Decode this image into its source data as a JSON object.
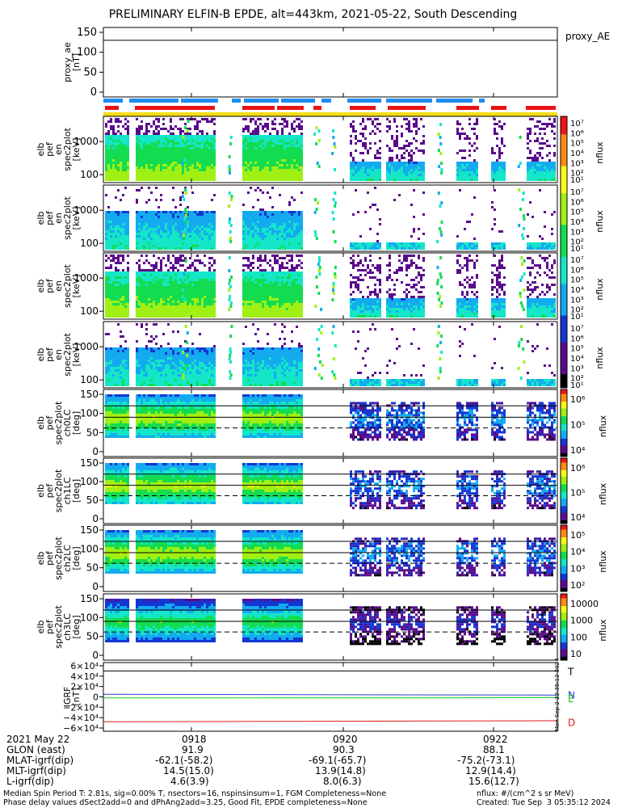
{
  "title": "PRELIMINARY ELFIN-B EPDE, alt=443km, 2021-05-22, South Descending",
  "proxy_label": "proxy_AE",
  "panels": [
    {
      "id": "proxy_ae",
      "label": "proxy_ae\n[nT]",
      "yticks": [
        "150",
        "100",
        "50",
        "0"
      ]
    },
    {
      "id": "en_perp",
      "label": "elb\npef\nen\nspec2plot\n[keV]",
      "yticks": [
        "1000",
        "100"
      ],
      "cbar": [
        "10⁷",
        "10⁶",
        "10⁵",
        "10⁴",
        "10³",
        "10²",
        "10¹"
      ]
    },
    {
      "id": "en_para",
      "label": "elb\npef\nen\nspec2plot\n[keV]",
      "yticks": [
        "1000",
        "100"
      ],
      "cbar": [
        "10⁷",
        "10⁶",
        "10⁵",
        "10⁴",
        "10³",
        "10²",
        "10¹"
      ]
    },
    {
      "id": "en_anti",
      "label": "elb\npef\nen\nspec2plot\n[keV]",
      "yticks": [
        "1000",
        "100"
      ],
      "cbar": [
        "10⁷",
        "10⁶",
        "10⁵",
        "10⁴",
        "10³",
        "10²",
        "10¹"
      ]
    },
    {
      "id": "en_other",
      "label": "elb\npef\nen\nspec2plot\n[keV]",
      "yticks": [
        "1000",
        "100"
      ],
      "cbar": [
        "10⁷",
        "10⁶",
        "10⁵",
        "10⁴",
        "10³",
        "10²",
        "10¹"
      ]
    },
    {
      "id": "ch0",
      "label": "elb\npef\nspec2plot\nch0LC\n[deg]",
      "yticks": [
        "150",
        "100",
        "50",
        "0"
      ],
      "cbar": [
        "10⁶",
        "10⁵",
        "10⁴"
      ]
    },
    {
      "id": "ch1",
      "label": "elb\npef\nspec2plot\nch1LC\n[deg]",
      "yticks": [
        "150",
        "100",
        "50",
        "0"
      ],
      "cbar": [
        "10⁶",
        "10⁵",
        "10⁴"
      ]
    },
    {
      "id": "ch2",
      "label": "elb\npef\nspec2plot\nch2LC\n[deg]",
      "yticks": [
        "150",
        "100",
        "50",
        "0"
      ],
      "cbar": [
        "10⁵",
        "10⁴",
        "10³",
        "10²"
      ]
    },
    {
      "id": "ch3",
      "label": "elb\npef\nspec2plot\nch3LC\n[deg]",
      "yticks": [
        "150",
        "100",
        "50",
        "0"
      ],
      "cbar": [
        "10000",
        "1000",
        "100",
        "10"
      ]
    },
    {
      "id": "igrf",
      "label": "IGRF\n[nT]",
      "yticks": [
        "6×10⁴",
        "4×10⁴",
        "2×10⁴",
        "0",
        "−2×10⁴",
        "−4×10⁴",
        "−6×10⁴"
      ]
    }
  ],
  "nflux_label": "nflux",
  "igrf_legend": [
    "T",
    "N",
    "E",
    "D"
  ],
  "igrf_colors": {
    "T": "#000000",
    "N": "#2a3cd6",
    "E": "#15c815",
    "D": "#e01818"
  },
  "info": {
    "rows": [
      {
        "label": "2021 May 22",
        "v1": "0918",
        "v2": "0920",
        "v3": "0922"
      },
      {
        "label": "GLON (east)",
        "v1": "91.9",
        "v2": "90.3",
        "v3": "88.1"
      },
      {
        "label": "MLAT-igrf(dip)",
        "v1": "-62.1(-58.2)",
        "v2": "-69.1(-65.7)",
        "v3": "-75.2(-73.1)"
      },
      {
        "label": "MLT-igrf(dip)",
        "v1": "14.5(15.0)",
        "v2": "13.9(14.8)",
        "v3": "12.9(14.4)"
      },
      {
        "label": "L-igrf(dip)",
        "v1": "4.6(3.9)",
        "v2": "8.0(6.3)",
        "v3": "15.6(12.7)"
      }
    ]
  },
  "footer": {
    "line1_left": "Median Spin Period T: 2.81s, sig=0.00% T, nsectors=16, nspinsinsum=1, FGM Completeness=None",
    "line2_left": "Phase delay values dSect2add=0 and dPhAng2add=3.25, Good Fit, EPDE completeness=None",
    "line1_right": "nflux: #/(cm^2 s sr MeV)",
    "line2_right": "Created: Tue Sep  3 05:35:12 2024",
    "side_stamp": "Mon Sep  2 22:35:12 2024"
  },
  "chart_data": {
    "type": "heatmap",
    "title": "PRELIMINARY ELFIN-B EPDE, alt=443km, 2021-05-22, South Descending",
    "x_ticks": [
      "0918",
      "0920",
      "0922"
    ],
    "proxy_ae": {
      "ylim": [
        0,
        150
      ],
      "value": null
    },
    "igrf": {
      "ylim": [
        -60000,
        60000
      ],
      "T": 50000,
      "N": 5000,
      "E": -2000,
      "D": -48000
    }
  },
  "colors": {
    "cbar": [
      "#000000",
      "#5a0a8c",
      "#1436d2",
      "#14aaf0",
      "#14e6c8",
      "#14dc50",
      "#a0f014",
      "#fafa14",
      "#fa8c14",
      "#f01414"
    ]
  }
}
